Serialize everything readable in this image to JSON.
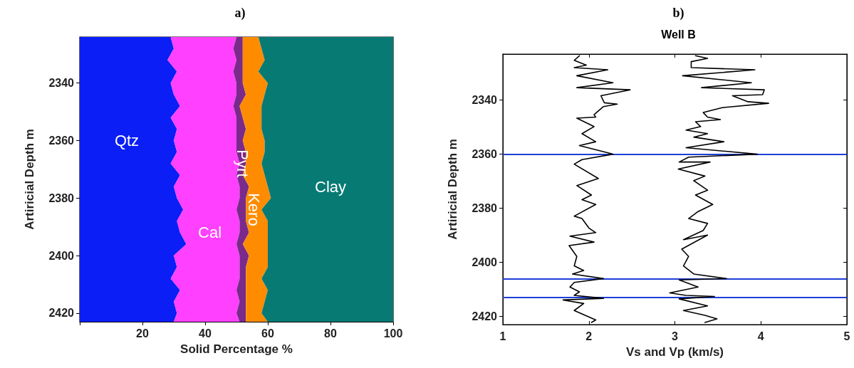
{
  "chart_data": [
    {
      "type": "area",
      "title": "a)",
      "xlabel": "Solid Percentage %",
      "ylabel": "Artiricial Depth m",
      "stacked": true,
      "orientation": "horizontal",
      "x": [
        2324,
        2328,
        2332,
        2336,
        2340,
        2344,
        2348,
        2352,
        2356,
        2360,
        2364,
        2368,
        2372,
        2376,
        2380,
        2384,
        2388,
        2392,
        2396,
        2400,
        2404,
        2408,
        2412,
        2416,
        2420,
        2423
      ],
      "series": [
        {
          "name": "Qtz",
          "color": "#0a1ef5",
          "values": [
            29,
            30,
            28,
            31,
            29,
            30,
            32,
            29,
            31,
            30,
            31,
            29,
            32,
            30,
            31,
            33,
            31,
            32,
            34,
            30,
            31,
            29,
            32,
            30,
            31,
            30
          ]
        },
        {
          "name": "Cal",
          "color": "#ff40ff",
          "values": [
            21,
            19,
            22,
            18,
            21,
            20,
            17,
            21,
            19,
            20,
            19,
            22,
            18,
            21,
            20,
            17,
            20,
            19,
            16,
            21,
            20,
            22,
            18,
            21,
            19,
            21
          ]
        },
        {
          "name": "Pyrt",
          "color": "#7a2a8a",
          "values": [
            2,
            3,
            2,
            3,
            2,
            3,
            2,
            2,
            3,
            2,
            3,
            2,
            2,
            3,
            2,
            3,
            2,
            3,
            2,
            3,
            2,
            2,
            3,
            2,
            3,
            2
          ]
        },
        {
          "name": "Kero",
          "color": "#ff8c00",
          "values": [
            5,
            6,
            7,
            5,
            8,
            6,
            7,
            6,
            5,
            7,
            6,
            5,
            7,
            6,
            8,
            5,
            7,
            6,
            8,
            6,
            7,
            5,
            7,
            6,
            5,
            7
          ]
        },
        {
          "name": "Clay",
          "color": "#077a74",
          "values": [
            43,
            42,
            41,
            43,
            40,
            41,
            42,
            42,
            42,
            41,
            41,
            42,
            41,
            40,
            39,
            42,
            40,
            40,
            40,
            40,
            40,
            42,
            40,
            41,
            42,
            40
          ]
        }
      ],
      "xlim": [
        0,
        100
      ],
      "xticks": [
        {
          "value": 0,
          "label": null
        },
        20,
        40,
        60,
        80,
        100
      ],
      "ylim": [
        2423,
        2324
      ],
      "yticks": [
        2340,
        2360,
        2380,
        2400,
        2420
      ]
    },
    {
      "type": "line",
      "title": "b)",
      "subtitle": "Well B",
      "xlabel": "Vs and Vp (km/s)",
      "ylabel": "Artiricial Depth m",
      "line_style": "solid",
      "series": [
        {
          "color": "#000000",
          "x": [
            1.89,
            1.83,
            1.97,
            1.83,
            2.22,
            1.86,
            2.28,
            1.86,
            2.48,
            2.14,
            2.18,
            2.33,
            2.17,
            2.06,
            2.08,
            1.86,
            2.06,
            1.92,
            2.08,
            1.89,
            2.28,
            1.92,
            1.83,
            2.11,
            1.86,
            2.03,
            1.92,
            2.08,
            1.83,
            1.92,
            2.0,
            2.08,
            1.78,
            2.06,
            1.77,
            1.86,
            1.83,
            1.94,
            1.81,
            2.17,
            1.83,
            1.78,
            1.89,
            1.83,
            2.17,
            1.7,
            1.94,
            1.83,
            2.08,
            2.03
          ],
          "values": [
            2323.6,
            2325.3,
            2327.1,
            2328.0,
            2328.8,
            2331.0,
            2333.6,
            2335.4,
            2336.2,
            2338.4,
            2341.0,
            2341.5,
            2342.4,
            2345.4,
            2346.3,
            2346.7,
            2349.8,
            2352.4,
            2355.4,
            2356.8,
            2360.0,
            2362.0,
            2363.7,
            2369.0,
            2371.6,
            2375.1,
            2376.8,
            2378.6,
            2382.9,
            2383.8,
            2387.3,
            2389.0,
            2390.3,
            2392.5,
            2393.8,
            2397.8,
            2401.3,
            2403.0,
            2404.3,
            2406.0,
            2407.4,
            2409.1,
            2410.9,
            2412.2,
            2413.3,
            2413.9,
            2415.2,
            2417.8,
            2421.3,
            2422.2
          ]
        },
        {
          "color": "#000000",
          "x": [
            3.24,
            3.38,
            3.19,
            3.19,
            3.93,
            3.09,
            3.89,
            3.31,
            4.04,
            4.02,
            3.67,
            3.85,
            4.09,
            3.55,
            3.33,
            3.38,
            3.53,
            3.24,
            3.3,
            3.13,
            3.38,
            3.22,
            3.57,
            3.13,
            3.96,
            3.16,
            3.05,
            3.41,
            3.04,
            3.35,
            3.22,
            3.38,
            3.24,
            3.44,
            3.27,
            3.16,
            3.38,
            3.33,
            3.1,
            3.38,
            3.08,
            3.16,
            3.1,
            3.22,
            3.6,
            3.05,
            3.27,
            2.94,
            3.13,
            3.46,
            3.05,
            3.38,
            3.1,
            3.35,
            3.49,
            3.35
          ],
          "values": [
            2323.6,
            2324.6,
            2325.8,
            2328.0,
            2328.8,
            2331.0,
            2333.6,
            2335.4,
            2336.2,
            2338.0,
            2338.4,
            2340.6,
            2341.2,
            2342.8,
            2344.6,
            2346.3,
            2347.2,
            2348.0,
            2349.8,
            2351.1,
            2352.4,
            2353.7,
            2355.4,
            2357.6,
            2360.0,
            2361.1,
            2362.9,
            2362.9,
            2365.5,
            2368.1,
            2369.8,
            2373.3,
            2375.1,
            2378.6,
            2381.2,
            2383.8,
            2385.6,
            2388.2,
            2391.6,
            2389.9,
            2395.1,
            2397.8,
            2401.3,
            2404.3,
            2406.0,
            2406.5,
            2409.1,
            2411.3,
            2412.2,
            2412.6,
            2413.5,
            2416.1,
            2417.8,
            2419.6,
            2420.9,
            2422.2
          ]
        }
      ],
      "ref_lines": [
        {
          "axis": "y",
          "value": 2360,
          "color": "#1f3fd6"
        },
        {
          "axis": "y",
          "value": 2406,
          "color": "#1f3fd6"
        },
        {
          "axis": "y",
          "value": 2413,
          "color": "#1f3fd6"
        }
      ],
      "xlim": [
        1,
        5
      ],
      "xticks": [
        1,
        2,
        3,
        4,
        5
      ],
      "ylim": [
        2423,
        2323
      ],
      "yticks": [
        2340,
        2360,
        2380,
        2400,
        2420
      ]
    }
  ]
}
